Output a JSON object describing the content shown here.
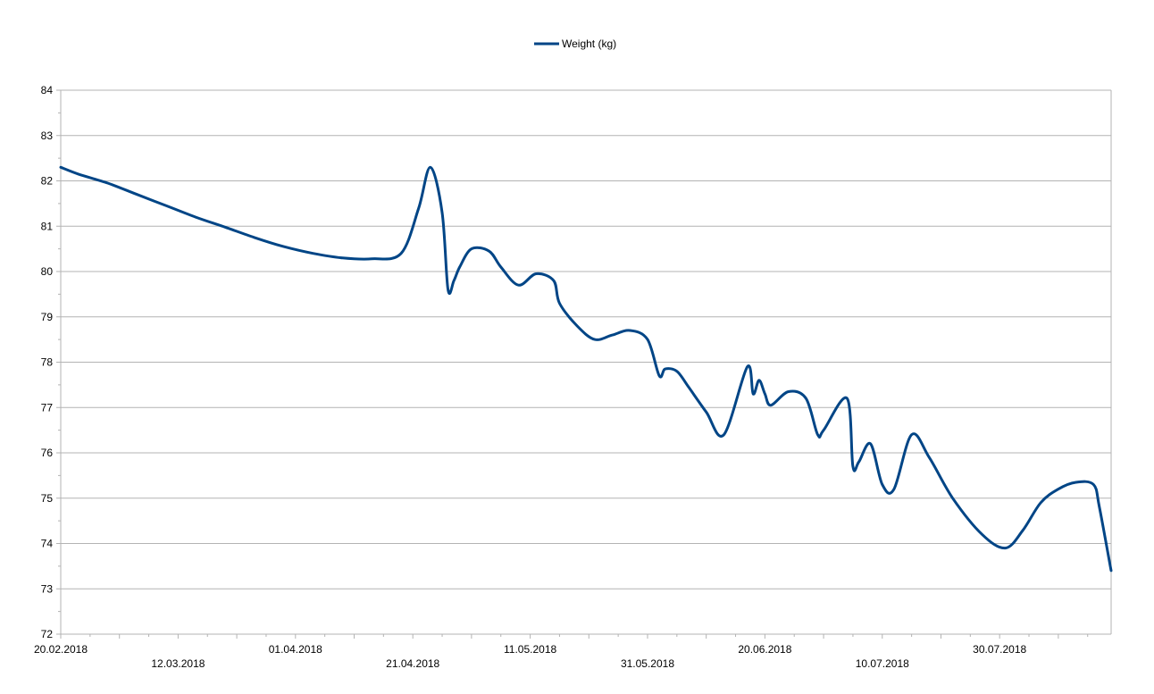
{
  "chart_data": {
    "type": "line",
    "title": "",
    "xlabel": "",
    "ylabel": "",
    "ylim": [
      72,
      84
    ],
    "xlim": [
      "2018-02-20",
      "2018-08-18"
    ],
    "grid": "horizontal",
    "legend_position": "top-center",
    "x_tick_labels": [
      "20.02.2018",
      "12.03.2018",
      "01.04.2018",
      "21.04.2018",
      "11.05.2018",
      "31.05.2018",
      "20.06.2018",
      "10.07.2018",
      "30.07.2018"
    ],
    "x_tick_dates": [
      "2018-02-20",
      "2018-03-12",
      "2018-04-01",
      "2018-04-21",
      "2018-05-11",
      "2018-05-31",
      "2018-06-20",
      "2018-07-10",
      "2018-07-30"
    ],
    "y_ticks": [
      72,
      73,
      74,
      75,
      76,
      77,
      78,
      79,
      80,
      81,
      82,
      83,
      84
    ],
    "series": [
      {
        "name": "Weight (kg)",
        "color": "#004586",
        "x": [
          "2018-02-20",
          "2018-02-23",
          "2018-02-28",
          "2018-03-05",
          "2018-03-10",
          "2018-03-15",
          "2018-03-20",
          "2018-03-25",
          "2018-03-30",
          "2018-04-04",
          "2018-04-09",
          "2018-04-14",
          "2018-04-19",
          "2018-04-22",
          "2018-04-24",
          "2018-04-26",
          "2018-04-27",
          "2018-04-28",
          "2018-04-29",
          "2018-05-01",
          "2018-05-04",
          "2018-05-06",
          "2018-05-09",
          "2018-05-12",
          "2018-05-15",
          "2018-05-16",
          "2018-05-19",
          "2018-05-22",
          "2018-05-25",
          "2018-05-28",
          "2018-05-31",
          "2018-06-02",
          "2018-06-03",
          "2018-06-05",
          "2018-06-07",
          "2018-06-10",
          "2018-06-13",
          "2018-06-17",
          "2018-06-18",
          "2018-06-19",
          "2018-06-20",
          "2018-06-21",
          "2018-06-24",
          "2018-06-27",
          "2018-06-29",
          "2018-06-30",
          "2018-07-04",
          "2018-07-05",
          "2018-07-06",
          "2018-07-08",
          "2018-07-10",
          "2018-07-12",
          "2018-07-15",
          "2018-07-18",
          "2018-07-22",
          "2018-07-27",
          "2018-07-31",
          "2018-08-03",
          "2018-08-06",
          "2018-08-09",
          "2018-08-12",
          "2018-08-15",
          "2018-08-16",
          "2018-08-18"
        ],
        "values": [
          82.3,
          82.15,
          81.95,
          81.7,
          81.45,
          81.2,
          80.98,
          80.75,
          80.55,
          80.4,
          80.3,
          80.28,
          80.4,
          81.4,
          82.3,
          81.3,
          79.6,
          79.8,
          80.1,
          80.5,
          80.45,
          80.1,
          79.7,
          79.95,
          79.8,
          79.3,
          78.8,
          78.5,
          78.6,
          78.7,
          78.5,
          77.7,
          77.85,
          77.8,
          77.45,
          76.9,
          76.4,
          77.9,
          77.3,
          77.6,
          77.3,
          77.05,
          77.35,
          77.2,
          76.4,
          76.5,
          77.2,
          75.7,
          75.8,
          76.2,
          75.3,
          75.2,
          76.4,
          75.9,
          75.0,
          74.2,
          73.9,
          74.3,
          74.9,
          75.2,
          75.35,
          75.3,
          74.8,
          73.4
        ]
      }
    ]
  }
}
